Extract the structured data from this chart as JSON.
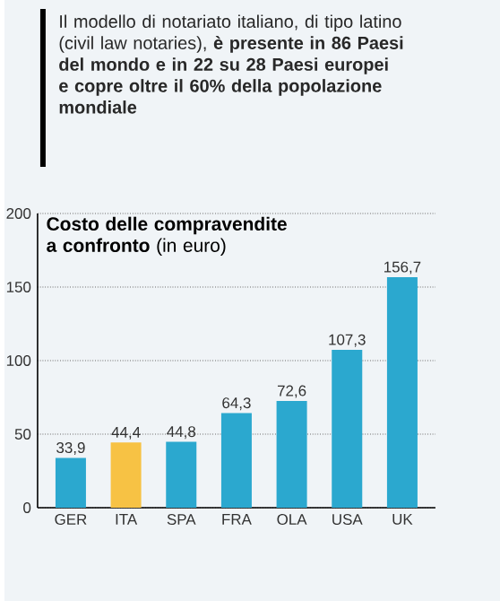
{
  "chart_data": {
    "type": "bar",
    "title": "**Costo delle compravendite a confronto** (in euro)",
    "annotations": [
      "Il modello di notariato italiano, di tipo latino (civil law notaries), **è presente in 86 Paesi del mondo e in 22 su 28 Paesi europei e copre oltre il 60% della popolazione mondiale**"
    ],
    "categories": [
      "GER",
      "ITA",
      "SPA",
      "FRA",
      "OLA",
      "USA",
      "UK"
    ],
    "values": [
      33.9,
      44.4,
      44.8,
      64.3,
      72.6,
      107.3,
      156.7
    ],
    "colors": [
      "#2ba8cf",
      "#f7c244",
      "#2ba8cf",
      "#2ba8cf",
      "#2ba8cf",
      "#2ba8cf",
      "#2ba8cf"
    ],
    "value_labels": [
      "33,9",
      "44,4",
      "44,8",
      "64,3",
      "72,6",
      "107,3",
      "156,7"
    ],
    "ylim": [
      0,
      200
    ],
    "yticks": [
      0,
      50,
      100,
      150,
      200
    ],
    "grid": "y"
  }
}
